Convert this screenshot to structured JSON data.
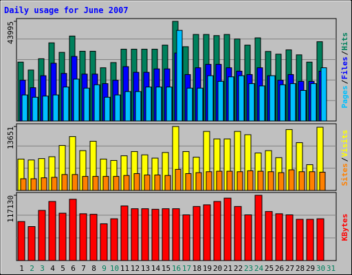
{
  "title": "Daily usage for June 2007",
  "colors": {
    "background": "#c0c0c0",
    "hits": "#00805c",
    "files": "#0000ff",
    "pages": "#00c0ff",
    "visits": "#ffff00",
    "sites": "#ff8000",
    "kbytes": "#ff0000",
    "title_text": "#0000ff",
    "weekend_label": "#00805c",
    "weekday_label": "#000000"
  },
  "chart_data": [
    {
      "type": "bar",
      "name": "hits-files-pages",
      "y_tick_label": "43995",
      "ylim": [
        0,
        43995
      ],
      "legend": [
        "Pages",
        "/",
        "Files",
        "/",
        "Hits"
      ],
      "categories": [
        "1",
        "2",
        "3",
        "4",
        "5",
        "6",
        "7",
        "8",
        "9",
        "10",
        "11",
        "12",
        "13",
        "14",
        "15",
        "16",
        "17",
        "18",
        "19",
        "20",
        "21",
        "22",
        "23",
        "24",
        "25",
        "26",
        "27",
        "28",
        "29",
        "30",
        "31"
      ],
      "series": [
        {
          "name": "Hits",
          "values": [
            26000,
            22500,
            27500,
            34500,
            30300,
            37500,
            30800,
            30800,
            23500,
            25800,
            31700,
            31700,
            31700,
            31700,
            33500,
            43995,
            32800,
            38200,
            38200,
            37700,
            38200,
            36200,
            33500,
            36700,
            30700,
            29500,
            31400,
            29200,
            26000,
            35000,
            0
          ]
        },
        {
          "name": "Files",
          "values": [
            18000,
            14700,
            20000,
            25500,
            21000,
            28500,
            20700,
            20700,
            16500,
            18000,
            24000,
            21500,
            21500,
            23000,
            23000,
            30000,
            20500,
            23500,
            25000,
            25000,
            23500,
            22000,
            20500,
            23500,
            20000,
            18000,
            20500,
            17500,
            17500,
            22000,
            0
          ]
        },
        {
          "name": "Pages",
          "values": [
            11500,
            10500,
            11000,
            11500,
            15000,
            18500,
            14500,
            16000,
            10500,
            11500,
            13000,
            13000,
            15000,
            15000,
            15000,
            40000,
            14500,
            14500,
            20000,
            17500,
            19500,
            20000,
            16500,
            15500,
            20000,
            16000,
            16500,
            13500,
            16500,
            23500,
            0
          ]
        }
      ]
    },
    {
      "type": "bar",
      "name": "visits-sites",
      "y_tick_label": "13651",
      "ylim": [
        0,
        13651
      ],
      "legend": [
        "Sites",
        "/",
        "Visits"
      ],
      "categories": [
        "1",
        "2",
        "3",
        "4",
        "5",
        "6",
        "7",
        "8",
        "9",
        "10",
        "11",
        "12",
        "13",
        "14",
        "15",
        "16",
        "17",
        "18",
        "19",
        "20",
        "21",
        "22",
        "23",
        "24",
        "25",
        "26",
        "27",
        "28",
        "29",
        "30",
        "31"
      ],
      "series": [
        {
          "name": "Visits",
          "values": [
            6700,
            6500,
            6800,
            7200,
            9600,
            11500,
            8500,
            10500,
            6700,
            6400,
            7400,
            8300,
            7600,
            6900,
            8100,
            13651,
            8300,
            7100,
            12600,
            11000,
            11000,
            12600,
            11900,
            8000,
            8500,
            7000,
            13000,
            10200,
            5500,
            13500,
            0
          ]
        },
        {
          "name": "Sites",
          "values": [
            2500,
            2500,
            2700,
            2800,
            3400,
            3400,
            3000,
            3000,
            3000,
            3000,
            3200,
            3600,
            3300,
            3300,
            3200,
            4500,
            3600,
            3800,
            4000,
            4100,
            4100,
            4000,
            4200,
            4100,
            4000,
            3800,
            4400,
            4000,
            4000,
            3900,
            0
          ]
        }
      ]
    },
    {
      "type": "bar",
      "name": "kbytes",
      "y_tick_label": "117130",
      "ylim": [
        0,
        117130
      ],
      "legend": [
        "KBytes"
      ],
      "categories": [
        "1",
        "2",
        "3",
        "4",
        "5",
        "6",
        "7",
        "8",
        "9",
        "10",
        "11",
        "12",
        "13",
        "14",
        "15",
        "16",
        "17",
        "18",
        "19",
        "20",
        "21",
        "22",
        "23",
        "24",
        "25",
        "26",
        "27",
        "28",
        "29",
        "30",
        "31"
      ],
      "series": [
        {
          "name": "KBytes",
          "values": [
            70000,
            61000,
            90000,
            106000,
            85000,
            110000,
            84000,
            83000,
            66000,
            75000,
            98000,
            93000,
            93000,
            92000,
            93000,
            93000,
            82000,
            97000,
            100000,
            106000,
            112000,
            97000,
            82000,
            117130,
            88000,
            84000,
            82000,
            74000,
            74000,
            75000,
            0
          ]
        }
      ]
    }
  ],
  "x_labels": [
    "1",
    "2",
    "3",
    "4",
    "5",
    "6",
    "7",
    "8",
    "9",
    "10",
    "11",
    "12",
    "13",
    "14",
    "15",
    "16",
    "17",
    "18",
    "19",
    "20",
    "21",
    "22",
    "23",
    "24",
    "25",
    "26",
    "27",
    "28",
    "29",
    "30",
    "31"
  ],
  "weekend_days": [
    2,
    3,
    9,
    10,
    16,
    17,
    23,
    24,
    30,
    31
  ]
}
